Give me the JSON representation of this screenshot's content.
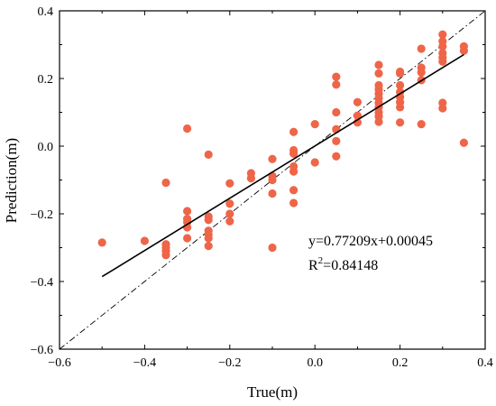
{
  "chart_data": {
    "type": "scatter",
    "xlabel": "True(m)",
    "ylabel": "Prediction(m)",
    "xlim": [
      -0.6,
      0.4
    ],
    "ylim": [
      -0.6,
      0.4
    ],
    "xticks": [
      -0.6,
      -0.4,
      -0.2,
      0.0,
      0.2,
      0.4
    ],
    "yticks": [
      -0.6,
      -0.4,
      -0.2,
      0.0,
      0.2,
      0.4
    ],
    "xtick_labels": [
      "−0.6",
      "−0.4",
      "−0.2",
      "0.0",
      "0.2",
      "0.4"
    ],
    "ytick_labels": [
      "−0.6",
      "−0.4",
      "−0.2",
      "0.0",
      "0.2",
      "0.4"
    ],
    "grid": false,
    "point_color": "#EF6548",
    "points": [
      {
        "x": -0.5,
        "y": -0.285
      },
      {
        "x": -0.4,
        "y": -0.28
      },
      {
        "x": -0.35,
        "y": -0.108
      },
      {
        "x": -0.35,
        "y": -0.29
      },
      {
        "x": -0.35,
        "y": -0.3
      },
      {
        "x": -0.35,
        "y": -0.31
      },
      {
        "x": -0.35,
        "y": -0.322
      },
      {
        "x": -0.3,
        "y": 0.052
      },
      {
        "x": -0.3,
        "y": -0.192
      },
      {
        "x": -0.3,
        "y": -0.215
      },
      {
        "x": -0.3,
        "y": -0.225
      },
      {
        "x": -0.3,
        "y": -0.24
      },
      {
        "x": -0.3,
        "y": -0.272
      },
      {
        "x": -0.25,
        "y": -0.025
      },
      {
        "x": -0.25,
        "y": -0.208
      },
      {
        "x": -0.25,
        "y": -0.218
      },
      {
        "x": -0.25,
        "y": -0.25
      },
      {
        "x": -0.25,
        "y": -0.262
      },
      {
        "x": -0.25,
        "y": -0.272
      },
      {
        "x": -0.25,
        "y": -0.295
      },
      {
        "x": -0.2,
        "y": -0.11
      },
      {
        "x": -0.2,
        "y": -0.17
      },
      {
        "x": -0.2,
        "y": -0.2
      },
      {
        "x": -0.2,
        "y": -0.222
      },
      {
        "x": -0.15,
        "y": -0.08
      },
      {
        "x": -0.15,
        "y": -0.095
      },
      {
        "x": -0.1,
        "y": -0.038
      },
      {
        "x": -0.1,
        "y": -0.088
      },
      {
        "x": -0.1,
        "y": -0.1
      },
      {
        "x": -0.1,
        "y": -0.14
      },
      {
        "x": -0.1,
        "y": -0.3
      },
      {
        "x": -0.05,
        "y": 0.042
      },
      {
        "x": -0.05,
        "y": -0.012
      },
      {
        "x": -0.05,
        "y": -0.022
      },
      {
        "x": -0.05,
        "y": -0.06
      },
      {
        "x": -0.05,
        "y": -0.075
      },
      {
        "x": -0.05,
        "y": -0.13
      },
      {
        "x": -0.05,
        "y": -0.168
      },
      {
        "x": 0.0,
        "y": 0.065
      },
      {
        "x": 0.0,
        "y": -0.048
      },
      {
        "x": 0.05,
        "y": 0.205
      },
      {
        "x": 0.05,
        "y": 0.182
      },
      {
        "x": 0.05,
        "y": 0.1
      },
      {
        "x": 0.05,
        "y": 0.05
      },
      {
        "x": 0.05,
        "y": 0.015
      },
      {
        "x": 0.05,
        "y": -0.03
      },
      {
        "x": 0.1,
        "y": 0.13
      },
      {
        "x": 0.1,
        "y": 0.09
      },
      {
        "x": 0.1,
        "y": 0.07
      },
      {
        "x": 0.15,
        "y": 0.24
      },
      {
        "x": 0.15,
        "y": 0.215
      },
      {
        "x": 0.15,
        "y": 0.18
      },
      {
        "x": 0.15,
        "y": 0.168
      },
      {
        "x": 0.15,
        "y": 0.155
      },
      {
        "x": 0.15,
        "y": 0.142
      },
      {
        "x": 0.15,
        "y": 0.128
      },
      {
        "x": 0.15,
        "y": 0.115
      },
      {
        "x": 0.15,
        "y": 0.1
      },
      {
        "x": 0.15,
        "y": 0.088
      },
      {
        "x": 0.15,
        "y": 0.072
      },
      {
        "x": 0.2,
        "y": 0.22
      },
      {
        "x": 0.2,
        "y": 0.215
      },
      {
        "x": 0.2,
        "y": 0.18
      },
      {
        "x": 0.2,
        "y": 0.16
      },
      {
        "x": 0.2,
        "y": 0.145
      },
      {
        "x": 0.2,
        "y": 0.13
      },
      {
        "x": 0.2,
        "y": 0.115
      },
      {
        "x": 0.2,
        "y": 0.07
      },
      {
        "x": 0.25,
        "y": 0.288
      },
      {
        "x": 0.25,
        "y": 0.232
      },
      {
        "x": 0.25,
        "y": 0.218
      },
      {
        "x": 0.25,
        "y": 0.195
      },
      {
        "x": 0.25,
        "y": 0.065
      },
      {
        "x": 0.3,
        "y": 0.33
      },
      {
        "x": 0.3,
        "y": 0.31
      },
      {
        "x": 0.3,
        "y": 0.295
      },
      {
        "x": 0.3,
        "y": 0.275
      },
      {
        "x": 0.3,
        "y": 0.262
      },
      {
        "x": 0.3,
        "y": 0.25
      },
      {
        "x": 0.3,
        "y": 0.128
      },
      {
        "x": 0.3,
        "y": 0.112
      },
      {
        "x": 0.35,
        "y": 0.295
      },
      {
        "x": 0.35,
        "y": 0.282
      },
      {
        "x": 0.35,
        "y": 0.01
      }
    ],
    "fit_line": {
      "slope": 0.77209,
      "intercept": 0.00045,
      "x_range": [
        -0.5,
        0.35
      ],
      "color": "#000000"
    },
    "reference_line": {
      "slope": 1,
      "intercept": 0,
      "style": "dash-dot",
      "color": "#000000"
    },
    "annotations": {
      "equation": "y=0.77209x+0.00045",
      "r2_prefix": "R",
      "r2_sup": "2",
      "r2_value": "=0.84148"
    }
  }
}
